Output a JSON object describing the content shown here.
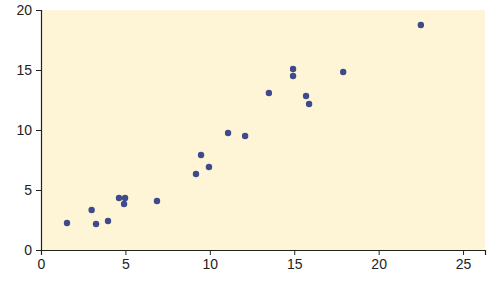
{
  "chart_data": {
    "type": "scatter",
    "x": [
      1.54,
      3.0,
      3.26,
      3.97,
      4.62,
      4.98,
      4.92,
      6.87,
      9.18,
      9.48,
      9.95,
      11.08,
      12.09,
      13.5,
      14.93,
      14.93,
      15.7,
      15.88,
      17.9,
      22.5
    ],
    "values": [
      2.25,
      3.33,
      2.17,
      2.42,
      4.33,
      4.33,
      3.83,
      4.08,
      6.33,
      7.92,
      6.92,
      9.75,
      9.5,
      13.08,
      15.08,
      14.5,
      12.83,
      12.17,
      14.83,
      18.75
    ],
    "color": "#3f4a8c",
    "marker": "circle",
    "grid": false,
    "xlim": [
      0,
      26.3
    ],
    "xticks": [
      0,
      5,
      10,
      15,
      20,
      25
    ],
    "ylim": [
      0,
      20
    ],
    "yticks": [
      0,
      5,
      10,
      15,
      20
    ]
  }
}
